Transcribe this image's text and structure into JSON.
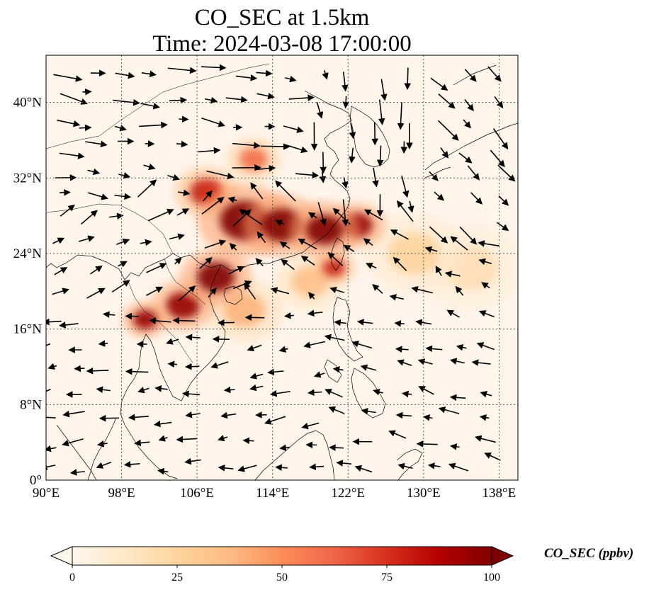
{
  "title": {
    "line1": "CO_SEC at 1.5km",
    "line2": "Time: 2024-03-08 17:00:00"
  },
  "map": {
    "lon_range": [
      90,
      140
    ],
    "lat_range": [
      0,
      45
    ],
    "lon_ticks": [
      "90°E",
      "98°E",
      "106°E",
      "114°E",
      "122°E",
      "130°E",
      "138°E"
    ],
    "lon_tick_values": [
      90,
      98,
      106,
      114,
      122,
      130,
      138
    ],
    "lat_ticks": [
      "0°",
      "8°N",
      "16°N",
      "24°N",
      "32°N",
      "40°N"
    ],
    "lat_tick_values": [
      0,
      8,
      16,
      24,
      32,
      40
    ],
    "gridlines": true,
    "background_color": "#fff5eb",
    "coastline_color": "#000000",
    "quantity": "CO_SEC",
    "units": "ppbv"
  },
  "colorbar": {
    "label": "CO_SEC (ppbv)",
    "ticks": [
      "0",
      "25",
      "50",
      "75",
      "100"
    ],
    "tick_values": [
      0,
      25,
      50,
      75,
      100
    ],
    "range": [
      0,
      100
    ],
    "colormap": "OrRd",
    "extend": "both",
    "colors": [
      "#fff7ec",
      "#fee8c8",
      "#fdd49e",
      "#fdbb84",
      "#fc8d59",
      "#ef6548",
      "#d7301f",
      "#b30000",
      "#7f0000"
    ]
  },
  "plumes": [
    {
      "lon": 111,
      "lat": 27.5,
      "value": 100,
      "spread": 2.6
    },
    {
      "lon": 115,
      "lat": 27.0,
      "value": 100,
      "spread": 2.2
    },
    {
      "lon": 119.5,
      "lat": 26.5,
      "value": 100,
      "spread": 2.0
    },
    {
      "lon": 123,
      "lat": 27.0,
      "value": 95,
      "spread": 1.6
    },
    {
      "lon": 108,
      "lat": 21.5,
      "value": 100,
      "spread": 2.0
    },
    {
      "lon": 104.5,
      "lat": 18.5,
      "value": 95,
      "spread": 1.8
    },
    {
      "lon": 100.5,
      "lat": 17.0,
      "value": 95,
      "spread": 1.3
    },
    {
      "lon": 107,
      "lat": 30.5,
      "value": 80,
      "spread": 1.8
    },
    {
      "lon": 112,
      "lat": 34.0,
      "value": 60,
      "spread": 1.5
    },
    {
      "lon": 120.5,
      "lat": 22.5,
      "value": 80,
      "spread": 1.2
    },
    {
      "lon": 129,
      "lat": 24.0,
      "value": 25,
      "spread": 2.8
    },
    {
      "lon": 135,
      "lat": 22.5,
      "value": 18,
      "spread": 3.0
    },
    {
      "lon": 111,
      "lat": 18.0,
      "value": 40,
      "spread": 2.2
    },
    {
      "lon": 118,
      "lat": 21.0,
      "value": 35,
      "spread": 2.0
    }
  ]
}
